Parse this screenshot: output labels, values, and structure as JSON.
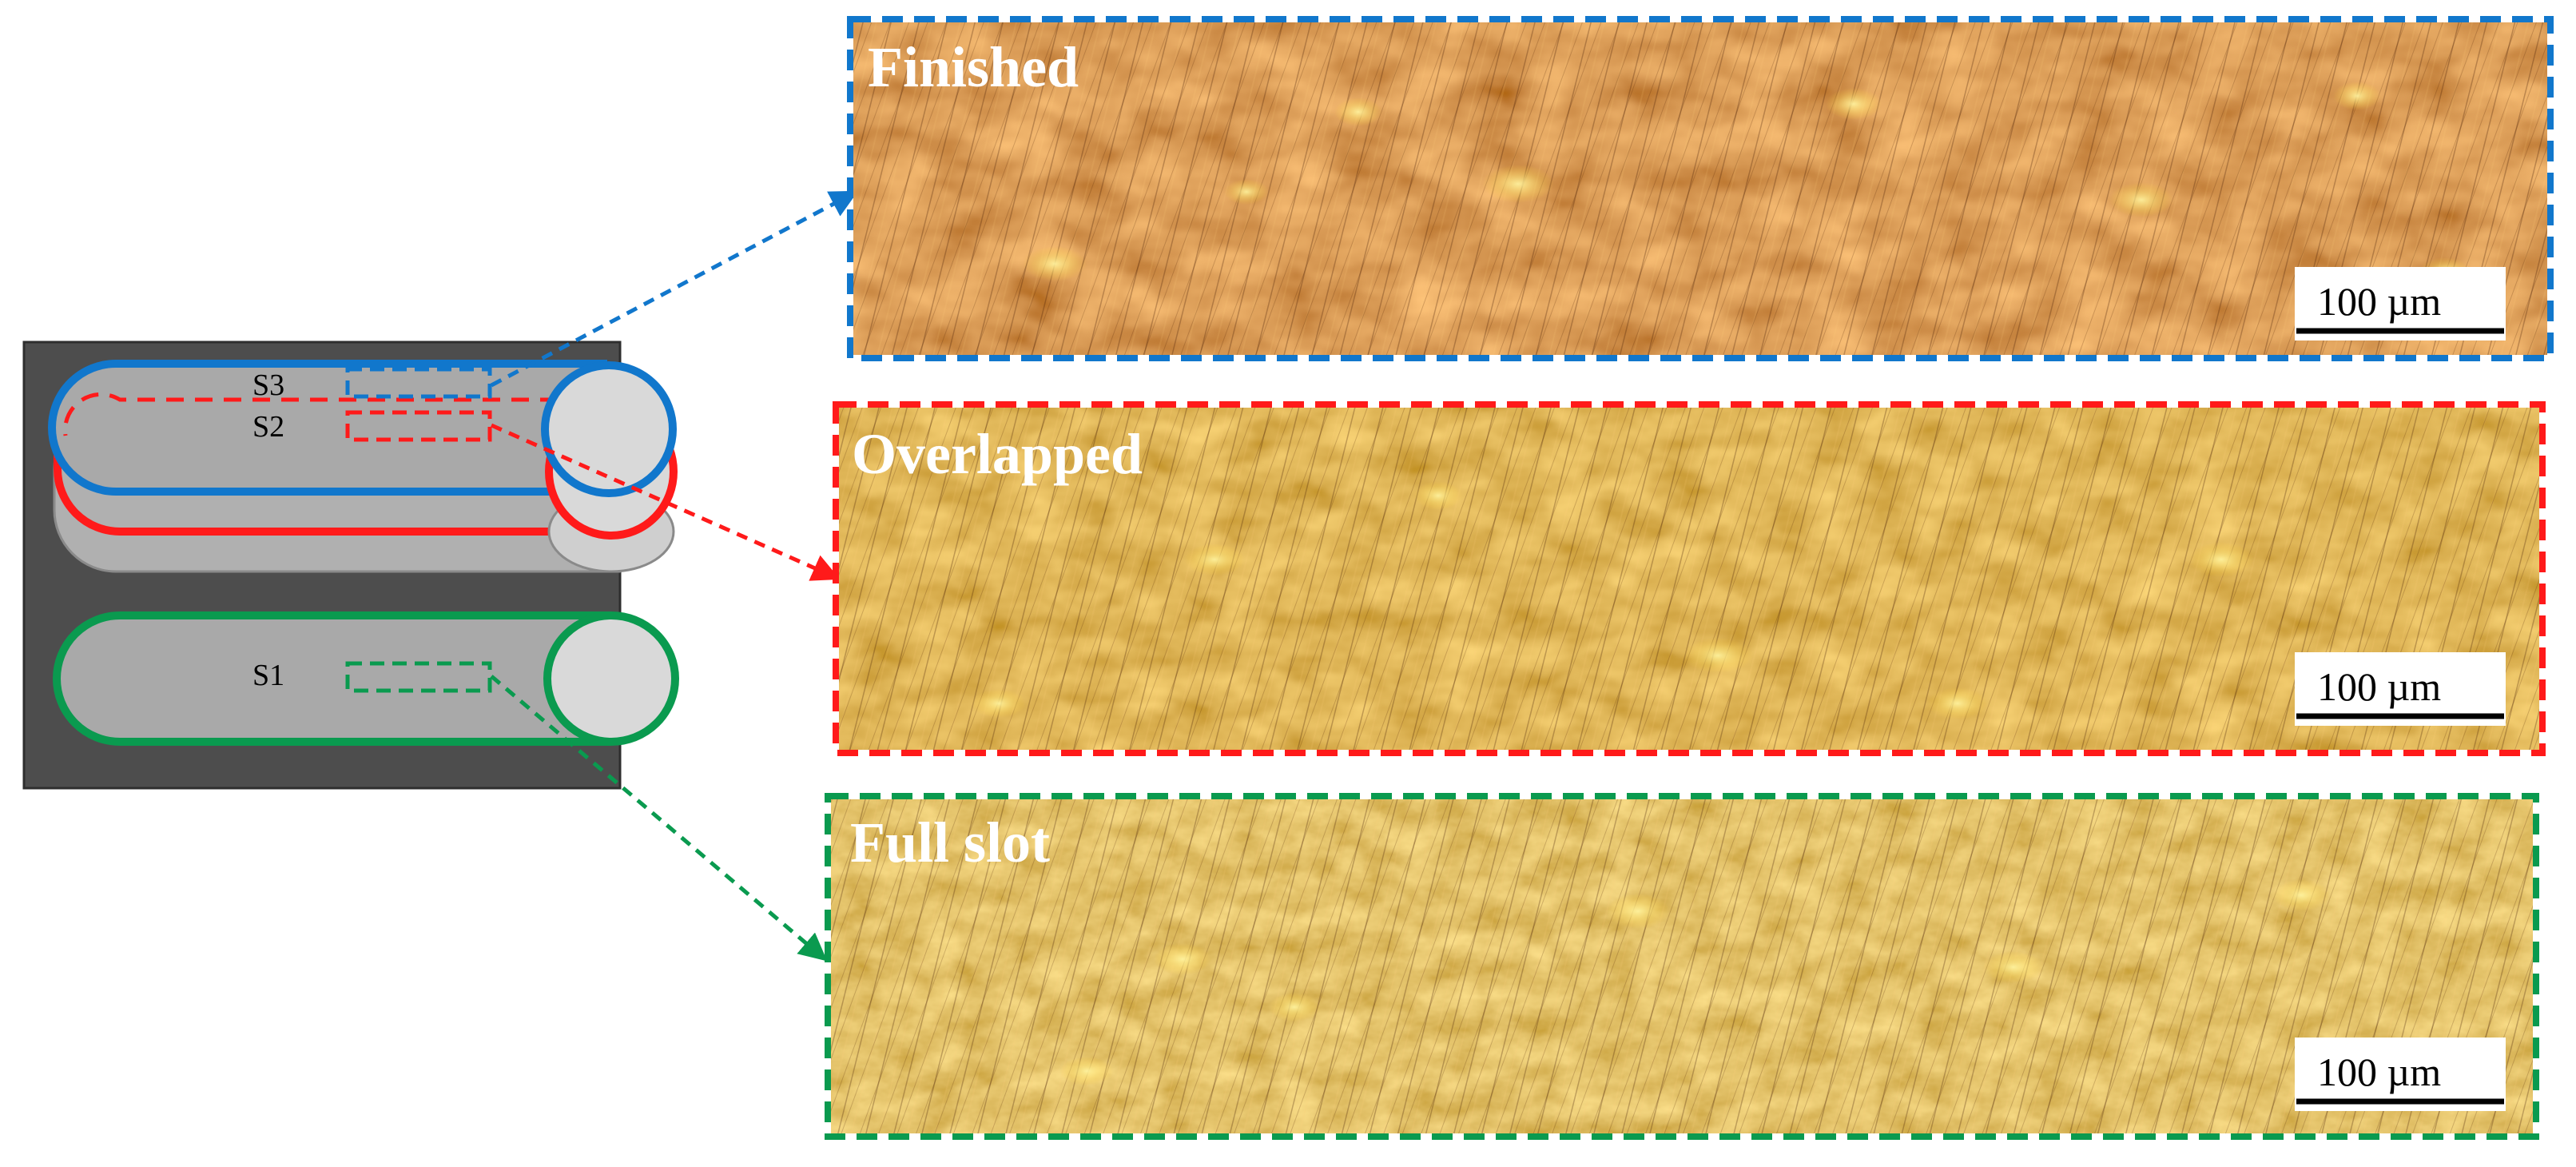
{
  "figure": {
    "slots": [
      {
        "id": "S1",
        "label": "S1",
        "color": "#0a9a4f"
      },
      {
        "id": "S2",
        "label": "S2",
        "color": "#ff1a1a"
      },
      {
        "id": "S3",
        "label": "S3",
        "color": "#1177cc"
      }
    ],
    "panels": [
      {
        "title": "Finished",
        "scale_label": "100 µm",
        "color": "#1177cc",
        "slot": "S3"
      },
      {
        "title": "Overlapped",
        "scale_label": "100 µm",
        "color": "#ff1a1a",
        "slot": "S2"
      },
      {
        "title": "Full slot",
        "scale_label": "100 µm",
        "color": "#0a9a4f",
        "slot": "S1"
      }
    ],
    "colors": {
      "workpiece_bg": "#4d4d4d",
      "slot_fill": "#a9a9a9",
      "slot_shade": "#c9c9c9",
      "end_cap": "#d9d9d9",
      "micro_dark": "#7a2a08",
      "micro_mid": "#b8650f",
      "micro_light": "#e3a52a"
    }
  }
}
